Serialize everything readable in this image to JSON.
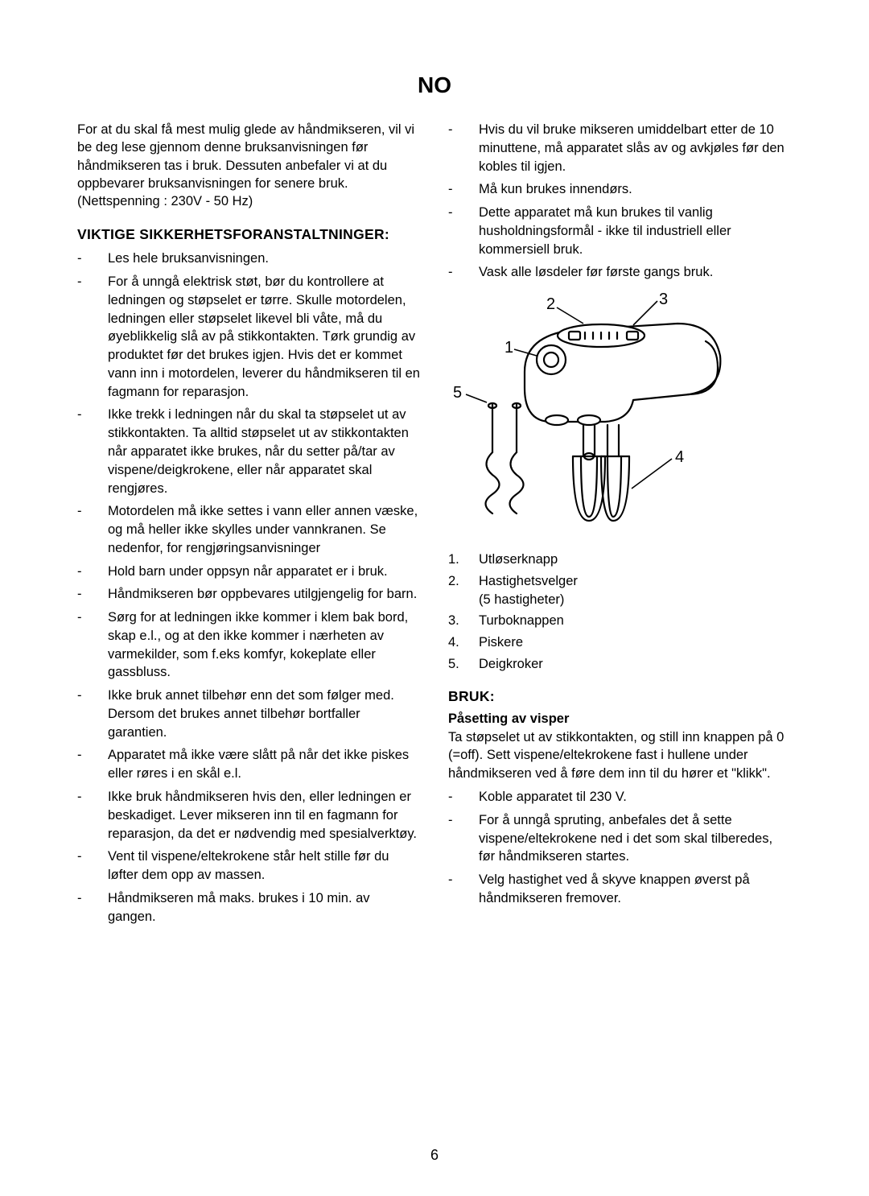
{
  "language_header": "NO",
  "intro": "For at du skal få mest mulig glede av håndmikseren, vil vi be deg lese gjennom denne bruksanvisningen før håndmikseren tas i bruk. Dessuten anbefaler vi at du oppbevarer bruksanvisningen for senere bruk.\n(Nettspenning : 230V - 50 Hz)",
  "safety": {
    "heading": "VIKTIGE SIKKERHETSFORANSTALTNINGER:",
    "items": [
      "Les hele bruksanvisningen.",
      "For å unngå elektrisk støt, bør du kontrollere at ledningen og støpselet er tørre. Skulle motordelen, ledningen eller støpselet likevel bli våte, må du øyeblikkelig slå av på stikkontakten. Tørk grundig av produktet før det brukes igjen. Hvis det er kommet vann inn i motordelen, leverer du håndmikseren til en fagmann for reparasjon.",
      "Ikke trekk i ledningen når du skal ta støpselet ut av stikkontakten. Ta alltid støpselet ut av stikkontakten når apparatet ikke brukes, når du setter på/tar av vispene/deigkrokene, eller når apparatet skal rengjøres.",
      "Motordelen må ikke settes i vann eller annen væske, og må heller ikke skylles under vannkranen. Se nedenfor, for rengjøringsanvisninger",
      "Hold barn under oppsyn når apparatet er i bruk.",
      "Håndmikseren bør oppbevares utilgjengelig for barn.",
      "Sørg for at ledningen ikke kommer i klem bak bord, skap e.l., og at den ikke kommer i nærheten av varmekilder, som f.eks komfyr, kokeplate eller gassbluss.",
      "Ikke bruk annet tilbehør enn det som følger med. Dersom det brukes annet tilbehør bortfaller garantien.",
      "Apparatet må ikke være slått på når det ikke piskes eller røres i en skål e.l.",
      "Ikke bruk håndmikseren hvis den, eller ledningen er beskadiget. Lever mikseren inn til en fagmann for reparasjon, da det er nødvendig med spesialverktøy.",
      "Vent til vispene/eltekrokene står helt stille før du løfter dem opp av massen.",
      "Håndmikseren må maks. brukes i 10 min. av gangen."
    ],
    "items_right": [
      "Hvis du vil bruke mikseren umiddelbart etter de 10 minuttene, må apparatet slås av og avkjøles før den kobles til igjen.",
      "Må kun brukes innendørs.",
      "Dette apparatet må kun brukes til vanlig husholdningsformål - ikke til industriell eller kommersiell bruk.",
      "Vask alle løsdeler før første gangs bruk."
    ]
  },
  "figure": {
    "labels": {
      "1": "1",
      "2": "2",
      "3": "3",
      "4": "4",
      "5": "5"
    },
    "stroke": "#000000",
    "fill": "#ffffff"
  },
  "parts_list": [
    {
      "num": "1.",
      "label": "Utløserknapp"
    },
    {
      "num": "2.",
      "label": "Hastighetsvelger\n(5 hastigheter)"
    },
    {
      "num": "3.",
      "label": "Turboknappen"
    },
    {
      "num": "4.",
      "label": "Piskere"
    },
    {
      "num": "5.",
      "label": "Deigkroker"
    }
  ],
  "usage": {
    "heading": "BRUK:",
    "sub": "Påsetting av visper",
    "para": "Ta støpselet ut av stikkontakten, og still inn knappen på 0 (=off). Sett vispene/eltekrokene fast i hullene under håndmikseren ved å føre dem inn til du hører et \"klikk\".",
    "items": [
      "Koble apparatet til 230 V.",
      "For å unngå spruting, anbefales det å sette vispene/eltekrokene ned i det som skal tilberedes, før håndmikseren startes.",
      "Velg hastighet ved å skyve knappen øverst på håndmikseren fremover."
    ]
  },
  "page_number": "6"
}
